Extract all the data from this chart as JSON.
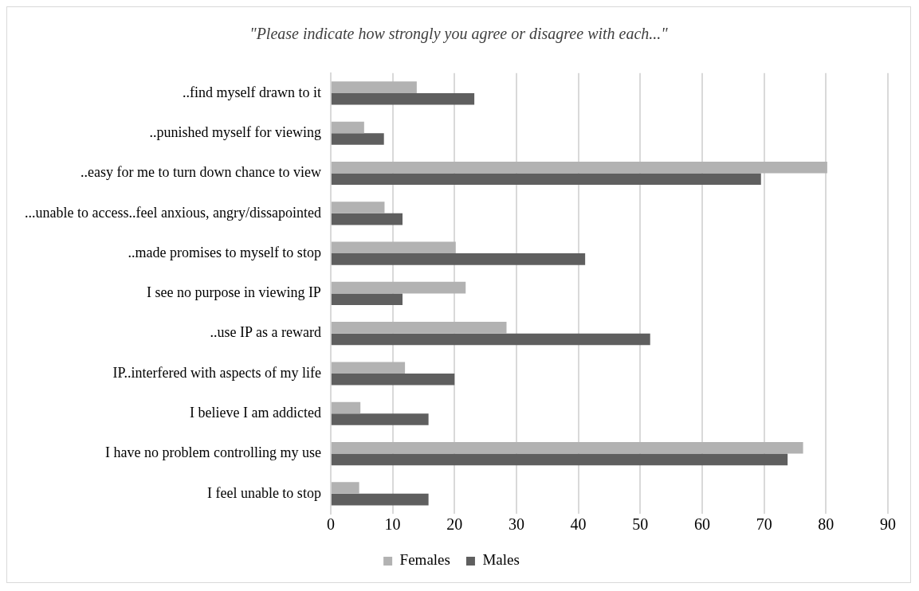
{
  "chart_data": {
    "type": "bar",
    "orientation": "horizontal",
    "title": "\"Please indicate how strongly you agree or disagree with each...\"",
    "categories": [
      "..find myself drawn to it",
      "..punished myself for viewing",
      "..easy for me to turn down chance to view",
      "...unable to access..feel anxious, angry/dissapointed",
      "..made promises to myself to stop",
      "I see no purpose in viewing IP",
      "..use IP as a reward",
      "IP..interfered with aspects of my life",
      "I believe I am addicted",
      "I have no problem controlling my use",
      "I feel unable to stop"
    ],
    "series": [
      {
        "name": "Females",
        "color": "#b2b2b2",
        "values": [
          13.9,
          5.4,
          80.2,
          8.7,
          20.2,
          21.8,
          28.4,
          12,
          4.8,
          76.3,
          4.6
        ]
      },
      {
        "name": "Males",
        "color": "#5f5f5f",
        "values": [
          23.2,
          8.6,
          69.5,
          11.6,
          41.1,
          11.6,
          51.6,
          20,
          15.8,
          73.8,
          15.8
        ]
      }
    ],
    "xlim": [
      0,
      90
    ],
    "xticks": [
      0,
      10,
      20,
      30,
      40,
      50,
      60,
      70,
      80,
      90
    ],
    "grid": "x",
    "legend": "bottom"
  }
}
